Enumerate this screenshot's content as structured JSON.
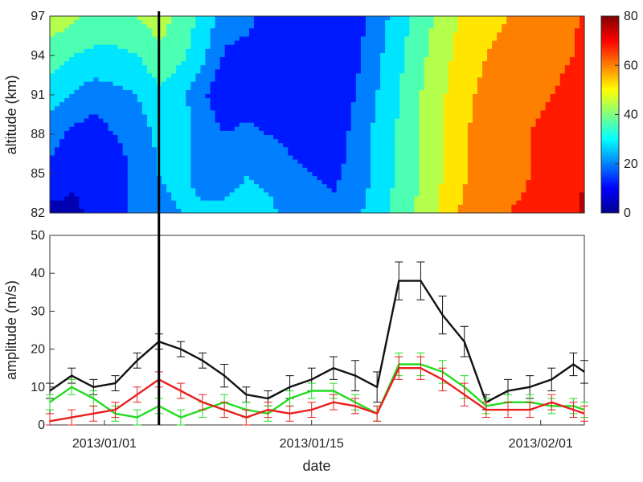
{
  "chart_data": [
    {
      "type": "heatmap",
      "title": "",
      "xlabel": "",
      "ylabel": "altitude (km)",
      "ylim": [
        82,
        97
      ],
      "yticks": [
        82,
        85,
        88,
        91,
        94,
        97
      ],
      "xlim": [
        -5,
        44
      ],
      "colorbar": {
        "min": 0,
        "max": 80,
        "ticks": [
          0,
          20,
          40,
          60,
          80
        ]
      },
      "altitudes": [
        82,
        85,
        88,
        91,
        94,
        97
      ],
      "days": [
        -5,
        -3,
        -1,
        1,
        3,
        5,
        7,
        9,
        11,
        13,
        15,
        17,
        19,
        21,
        23,
        25,
        27,
        29,
        31,
        33,
        35,
        37,
        39,
        41,
        43,
        44
      ],
      "values": [
        [
          6,
          6,
          10,
          12,
          18,
          22,
          24,
          25,
          26,
          27,
          26,
          22,
          20,
          18,
          22,
          28,
          36,
          42,
          50,
          58,
          62,
          64,
          65,
          67,
          70,
          74
        ],
        [
          14,
          10,
          9,
          12,
          18,
          24,
          26,
          22,
          20,
          24,
          22,
          18,
          16,
          14,
          19,
          26,
          33,
          40,
          48,
          55,
          60,
          62,
          64,
          66,
          68,
          72
        ],
        [
          20,
          14,
          12,
          16,
          20,
          26,
          28,
          21,
          16,
          18,
          16,
          14,
          13,
          12,
          18,
          26,
          33,
          40,
          48,
          55,
          60,
          62,
          64,
          66,
          68,
          72
        ],
        [
          28,
          24,
          20,
          22,
          24,
          30,
          26,
          18,
          9,
          12,
          10,
          8,
          10,
          10,
          16,
          24,
          32,
          40,
          47,
          54,
          58,
          60,
          62,
          64,
          66,
          70
        ],
        [
          36,
          32,
          30,
          30,
          32,
          38,
          34,
          26,
          15,
          14,
          12,
          9,
          9,
          9,
          14,
          22,
          30,
          38,
          45,
          52,
          56,
          58,
          60,
          62,
          64,
          68
        ],
        [
          46,
          42,
          38,
          38,
          40,
          44,
          38,
          30,
          20,
          18,
          14,
          10,
          8,
          8,
          12,
          20,
          28,
          36,
          43,
          50,
          54,
          56,
          58,
          60,
          62,
          66
        ]
      ]
    },
    {
      "type": "line",
      "title": "",
      "xlabel": "date",
      "ylabel": "amplitude (m/s)",
      "ylim": [
        0,
        50
      ],
      "yticks": [
        0,
        10,
        20,
        30,
        40,
        50
      ],
      "xlim": [
        -5,
        44
      ],
      "x_tick_days": [
        0,
        19,
        40
      ],
      "x_tick_labels": [
        "2013/01/01",
        "2013/01/15",
        "2013/02/01"
      ],
      "vline_day": 5,
      "series": [
        {
          "name": "black",
          "color": "#111111",
          "x": [
            -5,
            -3,
            -1,
            1,
            3,
            5,
            7,
            9,
            11,
            13,
            15,
            17,
            19,
            21,
            23,
            25,
            27,
            29,
            31,
            33,
            35,
            37,
            39,
            41,
            43,
            44
          ],
          "values": [
            9,
            13,
            10,
            11,
            17,
            22,
            20,
            17,
            13,
            8,
            7,
            10,
            12,
            15,
            13,
            10,
            38,
            38,
            29,
            22,
            6,
            9,
            10,
            12,
            16,
            14
          ],
          "errors": [
            2,
            2,
            2,
            2,
            2,
            2,
            2,
            2,
            3,
            2,
            2,
            3,
            3,
            3,
            4,
            4,
            5,
            5,
            5,
            4,
            2,
            3,
            3,
            3,
            3,
            3
          ]
        },
        {
          "name": "red",
          "color": "#e8201e",
          "x": [
            -5,
            -3,
            -1,
            1,
            3,
            5,
            7,
            9,
            11,
            13,
            15,
            17,
            19,
            21,
            23,
            25,
            27,
            29,
            31,
            33,
            35,
            37,
            39,
            41,
            43,
            44
          ],
          "values": [
            1,
            2,
            3,
            4,
            8,
            12,
            9,
            6,
            4,
            2,
            4,
            3,
            4,
            6,
            5,
            3,
            15,
            15,
            12,
            8,
            4,
            4,
            4,
            6,
            4,
            3
          ],
          "errors": [
            2,
            2,
            2,
            2,
            2,
            2,
            2,
            2,
            2,
            2,
            2,
            2,
            2,
            2,
            2,
            2,
            3,
            3,
            3,
            3,
            2,
            2,
            2,
            2,
            2,
            2
          ]
        },
        {
          "name": "green",
          "color": "#22dd22",
          "x": [
            -5,
            -3,
            -1,
            1,
            3,
            5,
            7,
            9,
            11,
            13,
            15,
            17,
            19,
            21,
            23,
            25,
            27,
            29,
            31,
            33,
            35,
            37,
            39,
            41,
            43,
            44
          ],
          "values": [
            6,
            10,
            7,
            3,
            2,
            5,
            2,
            4,
            6,
            4,
            3,
            7,
            9,
            9,
            6,
            3,
            16,
            16,
            14,
            10,
            5,
            6,
            6,
            5,
            5,
            4
          ],
          "errors": [
            2,
            2,
            2,
            2,
            2,
            2,
            2,
            2,
            2,
            2,
            2,
            2,
            2,
            2,
            2,
            2,
            3,
            3,
            3,
            3,
            2,
            2,
            2,
            2,
            2,
            2
          ]
        }
      ]
    }
  ]
}
